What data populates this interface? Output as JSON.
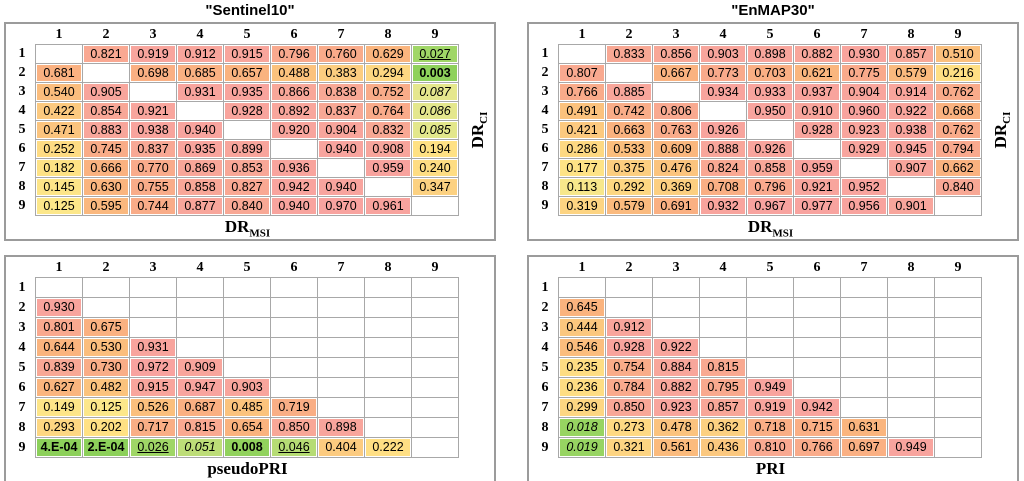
{
  "style": {
    "panel_border": "#9b9b9b",
    "cell_border": "#a8a8a8",
    "background": "#ffffff",
    "text": "#000000",
    "diagonal_stripe": "#e2e2e2"
  },
  "colormap": [
    {
      "v": 0.0,
      "c": "#8CD05A"
    },
    {
      "v": 0.02,
      "c": "#98D462"
    },
    {
      "v": 0.04,
      "c": "#AEDA70"
    },
    {
      "v": 0.06,
      "c": "#C9E07E"
    },
    {
      "v": 0.09,
      "c": "#E8E88F"
    },
    {
      "v": 0.12,
      "c": "#FCE78A"
    },
    {
      "v": 0.2,
      "c": "#FFE184"
    },
    {
      "v": 0.35,
      "c": "#FCD181"
    },
    {
      "v": 0.5,
      "c": "#FBC17D"
    },
    {
      "v": 0.65,
      "c": "#FAB37E"
    },
    {
      "v": 0.78,
      "c": "#F9AA8C"
    },
    {
      "v": 0.88,
      "c": "#F8A69B"
    },
    {
      "v": 1.0,
      "c": "#F8A2A0"
    }
  ],
  "chart_data": [
    {
      "type": "heatmap",
      "title": "\"Sentinel10\"",
      "xlabel": {
        "main": "DR",
        "sub": "MSI"
      },
      "ylabel": {
        "main": "DR",
        "sub": "CI"
      },
      "columns": [
        "1",
        "2",
        "3",
        "4",
        "5",
        "6",
        "7",
        "8",
        "9"
      ],
      "rows": [
        "1",
        "2",
        "3",
        "4",
        "5",
        "6",
        "7",
        "8",
        "9"
      ],
      "cells": [
        [
          "",
          "0.821",
          "0.919",
          "0.912",
          "0.915",
          "0.796",
          "0.760",
          "0.629",
          "0.027|u"
        ],
        [
          "0.681",
          "",
          "0.698",
          "0.685",
          "0.657",
          "0.488",
          "0.383",
          "0.294",
          "0.003|b"
        ],
        [
          "0.540",
          "0.905",
          "",
          "0.931",
          "0.935",
          "0.866",
          "0.838",
          "0.752",
          "0.087|i"
        ],
        [
          "0.422",
          "0.854",
          "0.921",
          "",
          "0.928",
          "0.892",
          "0.837",
          "0.764",
          "0.086|i"
        ],
        [
          "0.471",
          "0.883",
          "0.938",
          "0.940",
          "",
          "0.920",
          "0.904",
          "0.832",
          "0.085|i"
        ],
        [
          "0.252",
          "0.745",
          "0.837",
          "0.935",
          "0.899",
          "",
          "0.940",
          "0.908",
          "0.194"
        ],
        [
          "0.182",
          "0.666",
          "0.770",
          "0.869",
          "0.853",
          "0.936",
          "",
          "0.959",
          "0.240"
        ],
        [
          "0.145",
          "0.630",
          "0.755",
          "0.858",
          "0.827",
          "0.942",
          "0.940",
          "",
          "0.347"
        ],
        [
          "0.125",
          "0.595",
          "0.744",
          "0.877",
          "0.840",
          "0.940",
          "0.970",
          "0.961",
          ""
        ]
      ]
    },
    {
      "type": "heatmap",
      "title": "\"EnMAP30\"",
      "xlabel": {
        "main": "DR",
        "sub": "MSI"
      },
      "ylabel": {
        "main": "DR",
        "sub": "CI"
      },
      "columns": [
        "1",
        "2",
        "3",
        "4",
        "5",
        "6",
        "7",
        "8",
        "9"
      ],
      "rows": [
        "1",
        "2",
        "3",
        "4",
        "5",
        "6",
        "7",
        "8",
        "9"
      ],
      "cells": [
        [
          "",
          "0.833",
          "0.856",
          "0.903",
          "0.898",
          "0.882",
          "0.930",
          "0.857",
          "0.510"
        ],
        [
          "0.807",
          "",
          "0.667",
          "0.773",
          "0.703",
          "0.621",
          "0.775",
          "0.579",
          "0.216"
        ],
        [
          "0.766",
          "0.885",
          "",
          "0.934",
          "0.933",
          "0.937",
          "0.904",
          "0.914",
          "0.762"
        ],
        [
          "0.491",
          "0.742",
          "0.806",
          "",
          "0.950",
          "0.910",
          "0.960",
          "0.922",
          "0.668"
        ],
        [
          "0.421",
          "0.663",
          "0.763",
          "0.926",
          "",
          "0.928",
          "0.923",
          "0.938",
          "0.762"
        ],
        [
          "0.286",
          "0.533",
          "0.609",
          "0.888",
          "0.926",
          "",
          "0.929",
          "0.945",
          "0.794"
        ],
        [
          "0.177",
          "0.375",
          "0.476",
          "0.824",
          "0.858",
          "0.959",
          "",
          "0.907",
          "0.662"
        ],
        [
          "0.113",
          "0.292",
          "0.369",
          "0.708",
          "0.796",
          "0.921",
          "0.952",
          "",
          "0.840"
        ],
        [
          "0.319",
          "0.579",
          "0.691",
          "0.932",
          "0.967",
          "0.977",
          "0.956",
          "0.901",
          ""
        ]
      ]
    },
    {
      "type": "heatmap",
      "title": "",
      "xlabel": {
        "main": "pseudoPRI",
        "sub": ""
      },
      "ylabel": null,
      "columns": [
        "1",
        "2",
        "3",
        "4",
        "5",
        "6",
        "7",
        "8",
        "9"
      ],
      "rows": [
        "1",
        "2",
        "3",
        "4",
        "5",
        "6",
        "7",
        "8",
        "9"
      ],
      "cells": [
        [
          "",
          "",
          "",
          "",
          "",
          "",
          "",
          "",
          ""
        ],
        [
          "0.930",
          "",
          "",
          "",
          "",
          "",
          "",
          "",
          ""
        ],
        [
          "0.801",
          "0.675",
          "",
          "",
          "",
          "",
          "",
          "",
          ""
        ],
        [
          "0.644",
          "0.530",
          "0.931",
          "",
          "",
          "",
          "",
          "",
          ""
        ],
        [
          "0.839",
          "0.730",
          "0.972",
          "0.909",
          "",
          "",
          "",
          "",
          ""
        ],
        [
          "0.627",
          "0.482",
          "0.915",
          "0.947",
          "0.903",
          "",
          "",
          "",
          ""
        ],
        [
          "0.149",
          "0.125",
          "0.526",
          "0.687",
          "0.485",
          "0.719",
          "",
          "",
          ""
        ],
        [
          "0.293",
          "0.202",
          "0.717",
          "0.815",
          "0.654",
          "0.850",
          "0.898",
          "",
          ""
        ],
        [
          "4.E-04|b",
          "2.E-04|b",
          "0.026|u",
          "0.051|i",
          "0.008|b",
          "0.046|u",
          "0.404",
          "0.222",
          ""
        ]
      ]
    },
    {
      "type": "heatmap",
      "title": "",
      "xlabel": {
        "main": "PRI",
        "sub": ""
      },
      "ylabel": null,
      "columns": [
        "1",
        "2",
        "3",
        "4",
        "5",
        "6",
        "7",
        "8",
        "9"
      ],
      "rows": [
        "1",
        "2",
        "3",
        "4",
        "5",
        "6",
        "7",
        "8",
        "9"
      ],
      "cells": [
        [
          "",
          "",
          "",
          "",
          "",
          "",
          "",
          "",
          ""
        ],
        [
          "0.645",
          "",
          "",
          "",
          "",
          "",
          "",
          "",
          ""
        ],
        [
          "0.444",
          "0.912",
          "",
          "",
          "",
          "",
          "",
          "",
          ""
        ],
        [
          "0.546",
          "0.928",
          "0.922",
          "",
          "",
          "",
          "",
          "",
          ""
        ],
        [
          "0.235",
          "0.754",
          "0.884",
          "0.815",
          "",
          "",
          "",
          "",
          ""
        ],
        [
          "0.236",
          "0.784",
          "0.882",
          "0.795",
          "0.949",
          "",
          "",
          "",
          ""
        ],
        [
          "0.299",
          "0.850",
          "0.923",
          "0.857",
          "0.919",
          "0.942",
          "",
          "",
          ""
        ],
        [
          "0.018|i",
          "0.273",
          "0.478",
          "0.362",
          "0.718",
          "0.715",
          "0.631",
          "",
          ""
        ],
        [
          "0.019|i",
          "0.321",
          "0.561",
          "0.436",
          "0.810",
          "0.766",
          "0.697",
          "0.949",
          ""
        ]
      ]
    }
  ]
}
